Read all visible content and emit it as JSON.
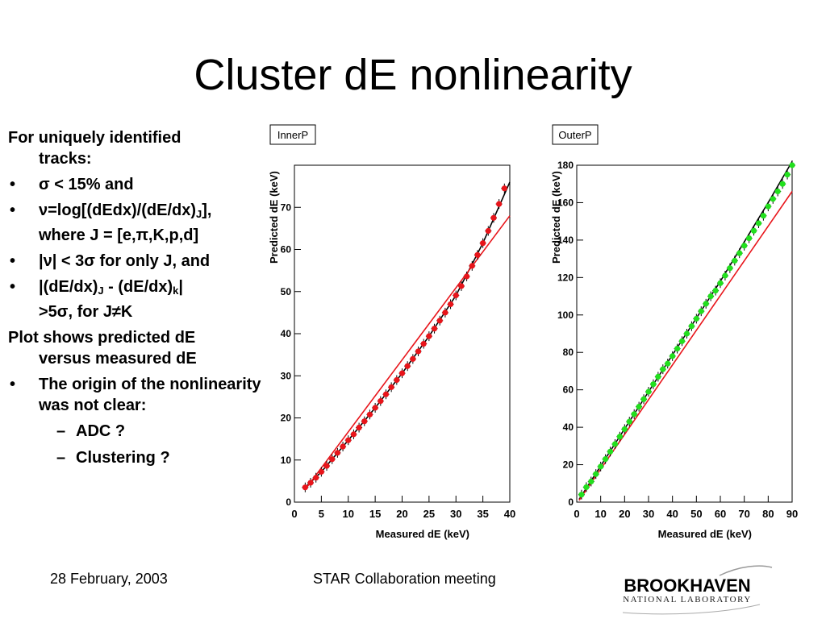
{
  "slide": {
    "title": "Cluster dE nonlinearity",
    "footer_date": "28 February, 2003",
    "footer_meeting": "STAR Collaboration  meeting",
    "logo": {
      "top": "BROOKHAVEN",
      "bottom": "NATIONAL LABORATORY"
    }
  },
  "bullets": {
    "intro_line1": "For uniquely identified",
    "intro_line2": "tracks:",
    "sigma": "σ < 15% and",
    "nu_a": "ν=log[(dEdx)/(dE/dx)",
    "nu_sub": "J",
    "nu_b": "],",
    "nu_line2": "where J = [e,π,K,p,d]",
    "abs_nu": "|ν| < 3σ for only J, and",
    "diff_a": "|(dE/dx)",
    "diff_sub1": "J",
    "diff_b": " - (dE/dx)",
    "diff_sub2": "k",
    "diff_c": "|",
    "diff_line2": ">5σ, for J≠K",
    "plot_line1": "Plot shows  predicted  dE",
    "plot_line2": "versus    measured dE",
    "origin": "The origin of the nonlinearity was not clear:",
    "adc": "ADC ?",
    "clustering": "Clustering ?"
  },
  "chart_data": [
    {
      "type": "scatter",
      "title": "InnerP",
      "xlabel": "Measured dE (keV)",
      "ylabel": "Predicted dE (keV)",
      "xlim": [
        0,
        40
      ],
      "ylim": [
        0,
        80
      ],
      "xticks": [
        0,
        5,
        10,
        15,
        20,
        25,
        30,
        35,
        40
      ],
      "yticks": [
        0,
        10,
        20,
        30,
        40,
        50,
        60,
        70
      ],
      "grid": false,
      "legend": "none",
      "series": [
        {
          "color": "#e8141a",
          "x": [
            2,
            3,
            4,
            5,
            6,
            7,
            8,
            9,
            10,
            11,
            12,
            13,
            14,
            15,
            16,
            17,
            18,
            19,
            20,
            21,
            22,
            23,
            24,
            25,
            26,
            27,
            28,
            29,
            30,
            31,
            32,
            33,
            34,
            35,
            36,
            37,
            38,
            39
          ],
          "y": [
            3.5,
            4.6,
            5.8,
            7.2,
            8.6,
            10.2,
            11.7,
            13.2,
            14.7,
            16.1,
            17.7,
            19.2,
            20.8,
            22.4,
            24.0,
            25.6,
            27.3,
            29.0,
            30.6,
            32.3,
            34.0,
            35.8,
            37.6,
            39.4,
            41.2,
            43.1,
            45.0,
            47.0,
            49.1,
            51.3,
            53.6,
            56.1,
            58.7,
            61.5,
            64.4,
            67.5,
            70.8,
            74.5
          ]
        }
      ],
      "lines": [
        {
          "color": "#000000",
          "x": [
            2,
            5,
            10,
            15,
            20,
            25,
            30,
            35,
            40
          ],
          "y": [
            3.5,
            7.2,
            14.7,
            22.4,
            30.6,
            39.4,
            49.1,
            61.5,
            76.0
          ]
        },
        {
          "color": "#e8141a",
          "x": [
            2,
            40
          ],
          "y": [
            3.0,
            68.0
          ]
        }
      ]
    },
    {
      "type": "scatter",
      "title": "OuterP",
      "xlabel": "Measured dE (keV)",
      "ylabel": "Predicted dE (keV)",
      "xlim": [
        0,
        90
      ],
      "ylim": [
        0,
        180
      ],
      "xticks": [
        0,
        10,
        20,
        30,
        40,
        50,
        60,
        70,
        80,
        90
      ],
      "yticks": [
        0,
        20,
        40,
        60,
        80,
        100,
        120,
        140,
        160,
        180
      ],
      "grid": false,
      "legend": "none",
      "series": [
        {
          "color": "#22e01e",
          "x": [
            2,
            4,
            6,
            8,
            10,
            12,
            14,
            16,
            18,
            20,
            22,
            24,
            26,
            28,
            30,
            32,
            34,
            36,
            38,
            40,
            42,
            44,
            46,
            48,
            50,
            52,
            54,
            56,
            58,
            60,
            62,
            64,
            66,
            68,
            70,
            72,
            74,
            76,
            78,
            80,
            82,
            84,
            86,
            88,
            90
          ],
          "y": [
            4,
            8,
            11,
            15,
            19,
            23,
            27,
            31,
            35,
            39,
            43,
            47,
            51,
            55,
            59,
            63,
            67,
            71,
            74,
            78,
            82,
            86,
            90,
            94,
            98,
            102,
            106,
            110,
            113,
            117,
            121,
            125,
            129,
            133,
            137,
            141,
            145,
            149,
            153,
            158,
            162,
            166,
            170,
            175,
            180
          ]
        }
      ],
      "lines": [
        {
          "color": "#000000",
          "x": [
            1,
            30,
            60,
            80,
            90
          ],
          "y": [
            1.5,
            59,
            118,
            160,
            182
          ]
        },
        {
          "color": "#e8141a",
          "x": [
            1,
            90
          ],
          "y": [
            1.0,
            166
          ]
        }
      ]
    }
  ]
}
